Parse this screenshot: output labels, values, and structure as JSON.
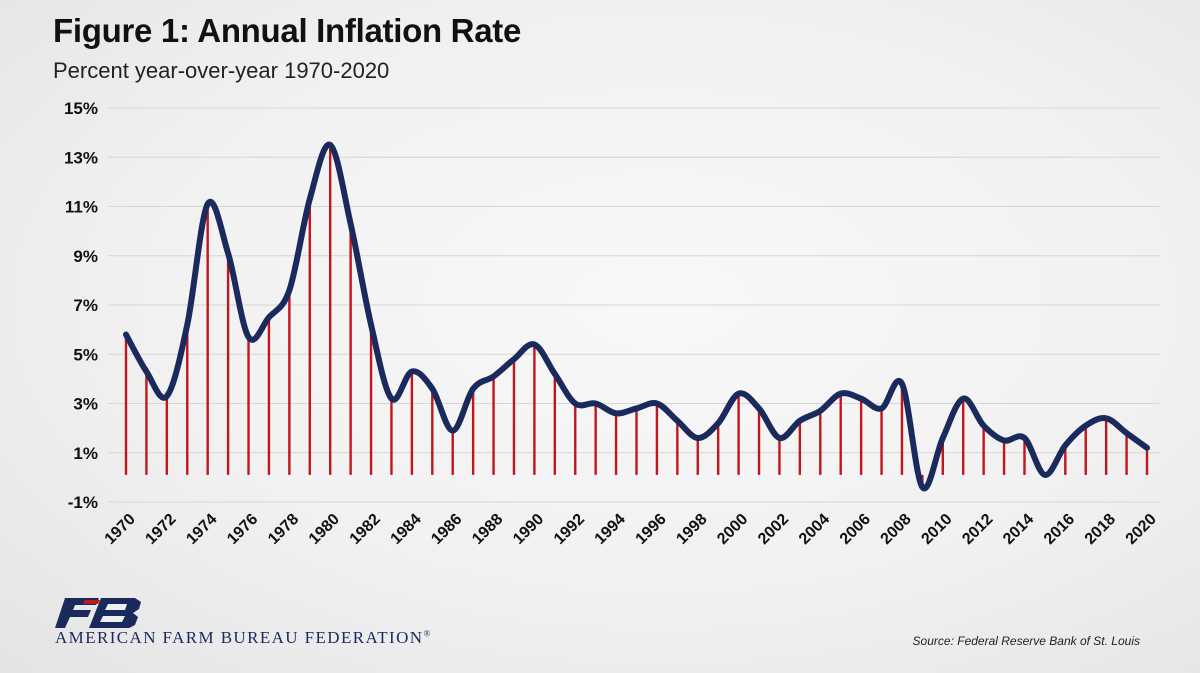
{
  "header": {
    "title": "Figure 1: Annual Inflation Rate",
    "subtitle": "Percent year-over-year 1970-2020"
  },
  "footer": {
    "org_name": "AMERICAN FARM BUREAU FEDERATION",
    "org_mark": "®",
    "logo_text": "FB",
    "source": "Source: Federal Reserve Bank of St. Louis"
  },
  "colors": {
    "line": "#1b2a5c",
    "bars": "#c0161c",
    "grid": "#d6d6d6",
    "logo": "#1b2a5c",
    "logo_accent": "#c0161c"
  },
  "chart_data": {
    "type": "line",
    "title": "Figure 1: Annual Inflation Rate",
    "subtitle": "Percent year-over-year 1970-2020",
    "xlabel": "",
    "ylabel": "",
    "ylim": [
      -1,
      15
    ],
    "yticks": [
      -1,
      1,
      3,
      5,
      7,
      9,
      11,
      13,
      15
    ],
    "ytick_labels": [
      "-1%",
      "1%",
      "3%",
      "5%",
      "7%",
      "9%",
      "11%",
      "13%",
      "15%"
    ],
    "xtick_labels": [
      "1970",
      "1972",
      "1974",
      "1976",
      "1978",
      "1980",
      "1982",
      "1984",
      "1986",
      "1988",
      "1990",
      "1992",
      "1994",
      "1996",
      "1998",
      "2000",
      "2002",
      "2004",
      "2006",
      "2008",
      "2010",
      "2012",
      "2014",
      "2016",
      "2018",
      "2020"
    ],
    "grid": true,
    "series": [
      {
        "name": "Annual inflation rate (%)",
        "style": "smooth line with vertical drop lines",
        "x": [
          1970,
          1971,
          1972,
          1973,
          1974,
          1975,
          1976,
          1977,
          1978,
          1979,
          1980,
          1981,
          1982,
          1983,
          1984,
          1985,
          1986,
          1987,
          1988,
          1989,
          1990,
          1991,
          1992,
          1993,
          1994,
          1995,
          1996,
          1997,
          1998,
          1999,
          2000,
          2001,
          2002,
          2003,
          2004,
          2005,
          2006,
          2007,
          2008,
          2009,
          2010,
          2011,
          2012,
          2013,
          2014,
          2015,
          2016,
          2017,
          2018,
          2019,
          2020
        ],
        "values": [
          5.8,
          4.3,
          3.3,
          6.2,
          11.1,
          9.1,
          5.7,
          6.5,
          7.6,
          11.3,
          13.5,
          10.3,
          6.2,
          3.2,
          4.3,
          3.6,
          1.9,
          3.6,
          4.1,
          4.8,
          5.4,
          4.2,
          3.0,
          3.0,
          2.6,
          2.8,
          3.0,
          2.3,
          1.6,
          2.2,
          3.4,
          2.8,
          1.6,
          2.3,
          2.7,
          3.4,
          3.2,
          2.8,
          3.8,
          -0.4,
          1.6,
          3.2,
          2.1,
          1.5,
          1.6,
          0.1,
          1.3,
          2.1,
          2.4,
          1.8,
          1.2
        ]
      }
    ]
  }
}
